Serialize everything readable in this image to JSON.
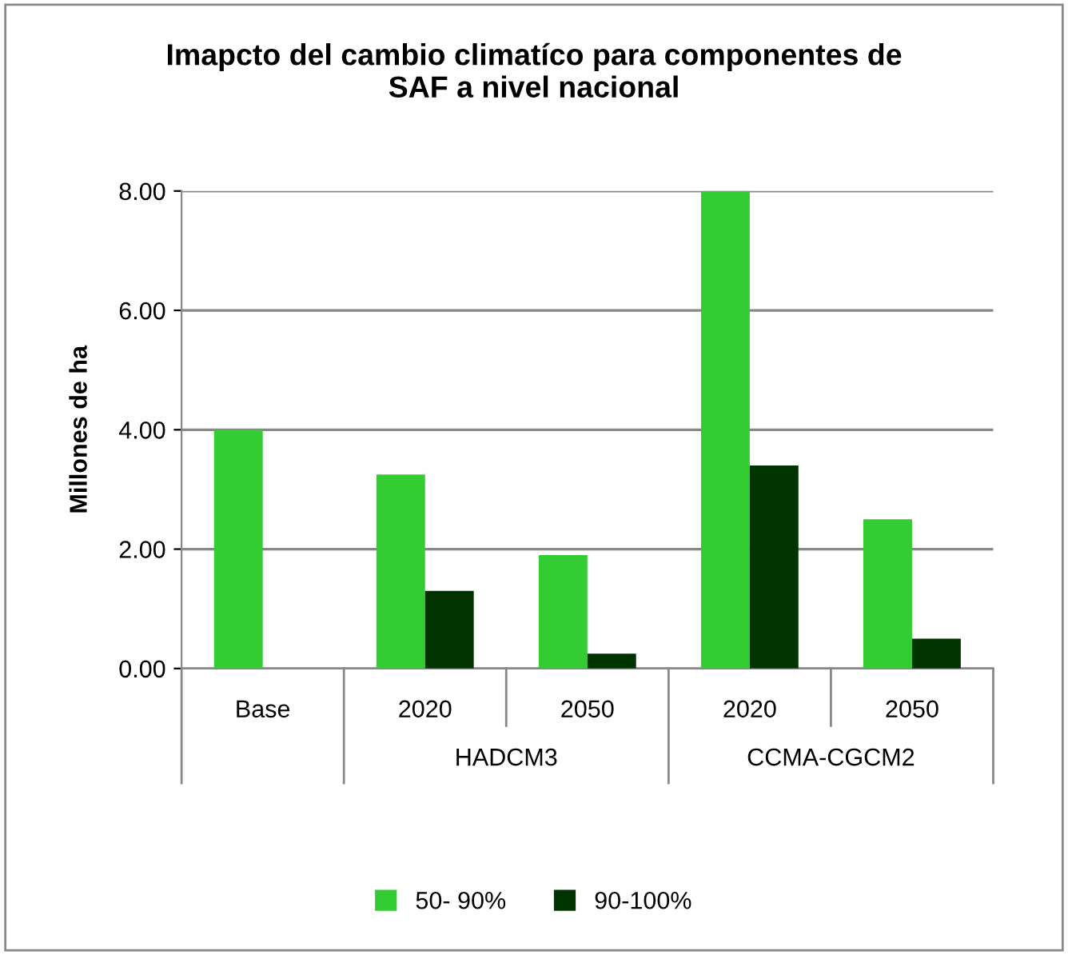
{
  "chart_data": {
    "type": "bar",
    "title": "Imapcto del cambio climatíco para componentes de\nSAF a nivel nacional",
    "ylabel": "Millones de ha",
    "categories": [
      "Base",
      "2020",
      "2050",
      "2020",
      "2050"
    ],
    "series": [
      {
        "name": "50- 90%",
        "color": "#33cc33",
        "values": [
          4.0,
          3.25,
          1.9,
          8.0,
          2.5
        ]
      },
      {
        "name": "90-100%",
        "color": "#003300",
        "values": [
          0.0,
          1.3,
          0.25,
          3.4,
          0.5
        ]
      }
    ],
    "annotations": [
      "HADCM3",
      "CCMA-CGCM2"
    ],
    "ylim": [
      0,
      8
    ],
    "yticks": [
      {
        "value": 0,
        "label": "0.00"
      },
      {
        "value": 2,
        "label": "2.00"
      },
      {
        "value": 4,
        "label": "4.00"
      },
      {
        "value": 6,
        "label": "6.00"
      },
      {
        "value": 8,
        "label": "8.00"
      }
    ],
    "grid": "y",
    "legend": "bottom"
  }
}
